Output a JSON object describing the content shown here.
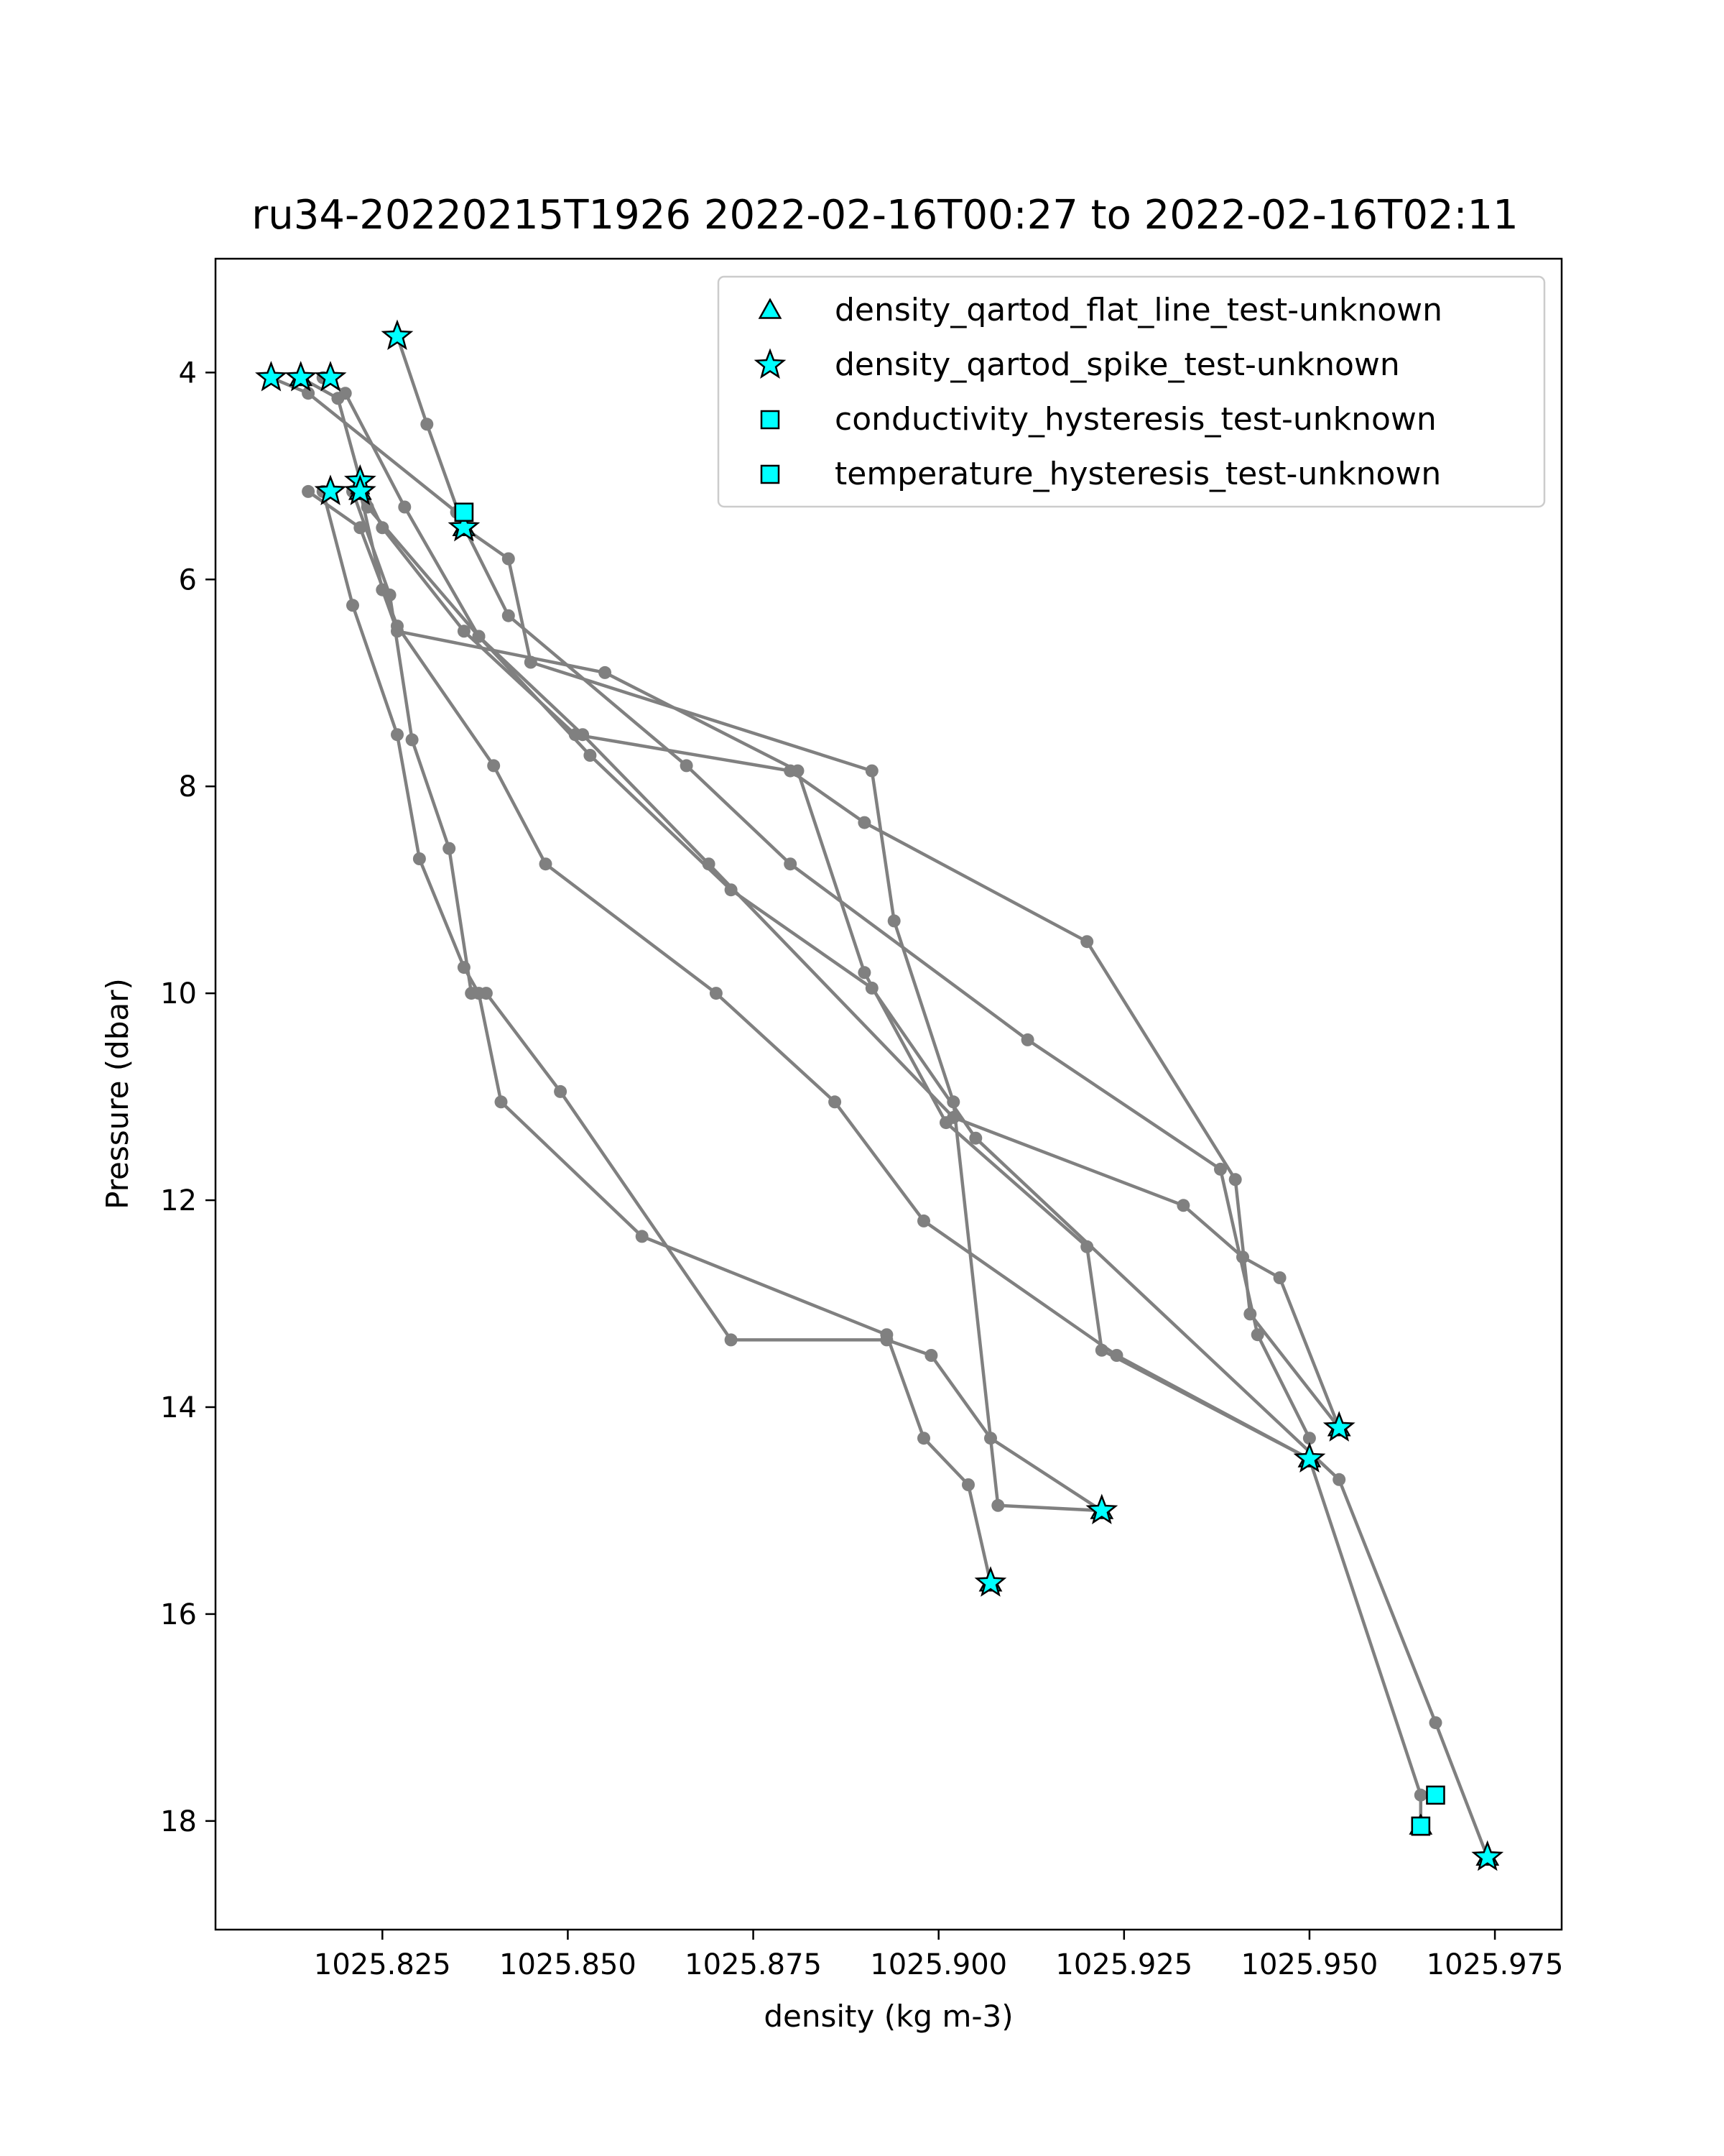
{
  "chart_data": {
    "type": "scatter",
    "title": "ru34-20220215T1926 2022-02-16T00:27 to 2022-02-16T02:11",
    "xlabel": "density (kg m-3)",
    "ylabel": "Pressure (dbar)",
    "xlim": [
      1025.8025,
      1025.984
    ],
    "ylim": [
      19.05,
      2.9
    ],
    "y_inverted": true,
    "grid": false,
    "legend_position": "top-right",
    "xticks": [
      1025.825,
      1025.85,
      1025.875,
      1025.9,
      1025.925,
      1025.95,
      1025.975
    ],
    "xtick_labels": [
      "1025.825",
      "1025.850",
      "1025.875",
      "1025.900",
      "1025.925",
      "1025.950",
      "1025.975"
    ],
    "yticks": [
      4,
      6,
      8,
      10,
      12,
      14,
      16,
      18
    ],
    "ytick_labels": [
      "4",
      "6",
      "8",
      "10",
      "12",
      "14",
      "16",
      "18"
    ],
    "profile_line_color": "#808080",
    "marker_fill_color": "#00ffff",
    "marker_edge_color": "#000000",
    "profiles": [
      {
        "x": [
          1025.827,
          1025.831,
          1025.836,
          1025.842,
          1025.845,
          1025.891,
          1025.894,
          1025.902,
          1025.908,
          1025.922
        ],
        "y": [
          3.65,
          4.5,
          5.5,
          5.8,
          6.8,
          7.85,
          9.3,
          11.05,
          14.95,
          15.0
        ]
      },
      {
        "x": [
          1025.822,
          1025.825,
          1025.836,
          1025.851,
          1025.88,
          1025.89,
          1025.92,
          1025.94,
          1025.942,
          1025.954
        ],
        "y": [
          5.05,
          5.5,
          6.5,
          7.5,
          7.85,
          8.35,
          9.5,
          11.8,
          13.1,
          14.2
        ]
      },
      {
        "x": [
          1025.822,
          1025.825,
          1025.827,
          1025.855,
          1025.881,
          1025.89,
          1025.901,
          1025.92,
          1025.922,
          1025.95
        ],
        "y": [
          5.15,
          6.1,
          6.5,
          6.9,
          7.85,
          9.8,
          11.25,
          12.45,
          13.45,
          14.5
        ]
      },
      {
        "x": [
          1025.81,
          1025.815,
          1025.835,
          1025.842,
          1025.866,
          1025.88,
          1025.912,
          1025.938,
          1025.943,
          1025.95
        ],
        "y": [
          4.05,
          4.2,
          5.35,
          6.35,
          7.8,
          8.75,
          10.45,
          11.7,
          13.3,
          14.3
        ]
      },
      {
        "x": [
          1025.817,
          1025.82,
          1025.828,
          1025.838,
          1025.852,
          1025.869,
          1025.902,
          1025.933,
          1025.941,
          1025.946,
          1025.954
        ],
        "y": [
          4.05,
          4.2,
          5.3,
          6.55,
          7.5,
          8.75,
          11.2,
          12.05,
          12.55,
          12.75,
          14.2
        ]
      },
      {
        "x": [
          1025.814,
          1025.819,
          1025.823,
          1025.838,
          1025.853,
          1025.872,
          1025.891,
          1025.905,
          1025.954,
          1025.967,
          1025.974
        ],
        "y": [
          4.05,
          4.25,
          5.3,
          6.55,
          7.7,
          9.0,
          9.95,
          11.4,
          14.7,
          17.05,
          18.35
        ]
      },
      {
        "x": [
          1025.815,
          1025.822,
          1025.827,
          1025.84,
          1025.847,
          1025.87,
          1025.886,
          1025.898,
          1025.924,
          1025.95,
          1025.965,
          1025.965
        ],
        "y": [
          5.15,
          5.5,
          6.45,
          7.8,
          8.75,
          10.0,
          11.05,
          12.2,
          13.5,
          14.5,
          17.75,
          18.05
        ]
      },
      {
        "x": [
          1025.817,
          1025.821,
          1025.827,
          1025.83,
          1025.836,
          1025.838,
          1025.841,
          1025.86,
          1025.893,
          1025.898,
          1025.904,
          1025.907
        ],
        "y": [
          5.15,
          6.25,
          7.5,
          8.7,
          9.75,
          10.0,
          11.05,
          12.35,
          13.3,
          14.3,
          14.75,
          15.7
        ]
      },
      {
        "x": [
          1025.821,
          1025.826,
          1025.829,
          1025.834,
          1025.837,
          1025.839,
          1025.849,
          1025.872,
          1025.893,
          1025.899,
          1025.907,
          1025.922
        ],
        "y": [
          5.15,
          6.15,
          7.55,
          8.6,
          10.0,
          10.0,
          10.95,
          13.35,
          13.35,
          13.5,
          14.3,
          15.0
        ]
      }
    ],
    "series": [
      {
        "name": "density_qartod_flat_line_test-unknown",
        "marker": "triangle",
        "x": [
          1025.814,
          1025.822,
          1025.836,
          1025.907,
          1025.922,
          1025.95,
          1025.954,
          1025.965,
          1025.974
        ],
        "y": [
          4.05,
          5.15,
          5.5,
          15.7,
          15.0,
          14.5,
          14.2,
          18.05,
          18.35
        ]
      },
      {
        "name": "density_qartod_spike_test-unknown",
        "marker": "star",
        "x": [
          1025.81,
          1025.814,
          1025.818,
          1025.827,
          1025.818,
          1025.822,
          1025.822,
          1025.836,
          1025.907,
          1025.922,
          1025.95,
          1025.954,
          1025.974
        ],
        "y": [
          4.05,
          4.05,
          4.05,
          3.65,
          5.15,
          5.05,
          5.15,
          5.5,
          15.7,
          15.0,
          14.5,
          14.2,
          18.35
        ]
      },
      {
        "name": "conductivity_hysteresis_test-unknown",
        "marker": "square",
        "x": [
          1025.836,
          1025.965,
          1025.967
        ],
        "y": [
          5.35,
          18.05,
          17.75
        ]
      },
      {
        "name": "temperature_hysteresis_test-unknown",
        "marker": "square",
        "x": [
          1025.836,
          1025.965
        ],
        "y": [
          5.35,
          18.05
        ]
      }
    ]
  }
}
